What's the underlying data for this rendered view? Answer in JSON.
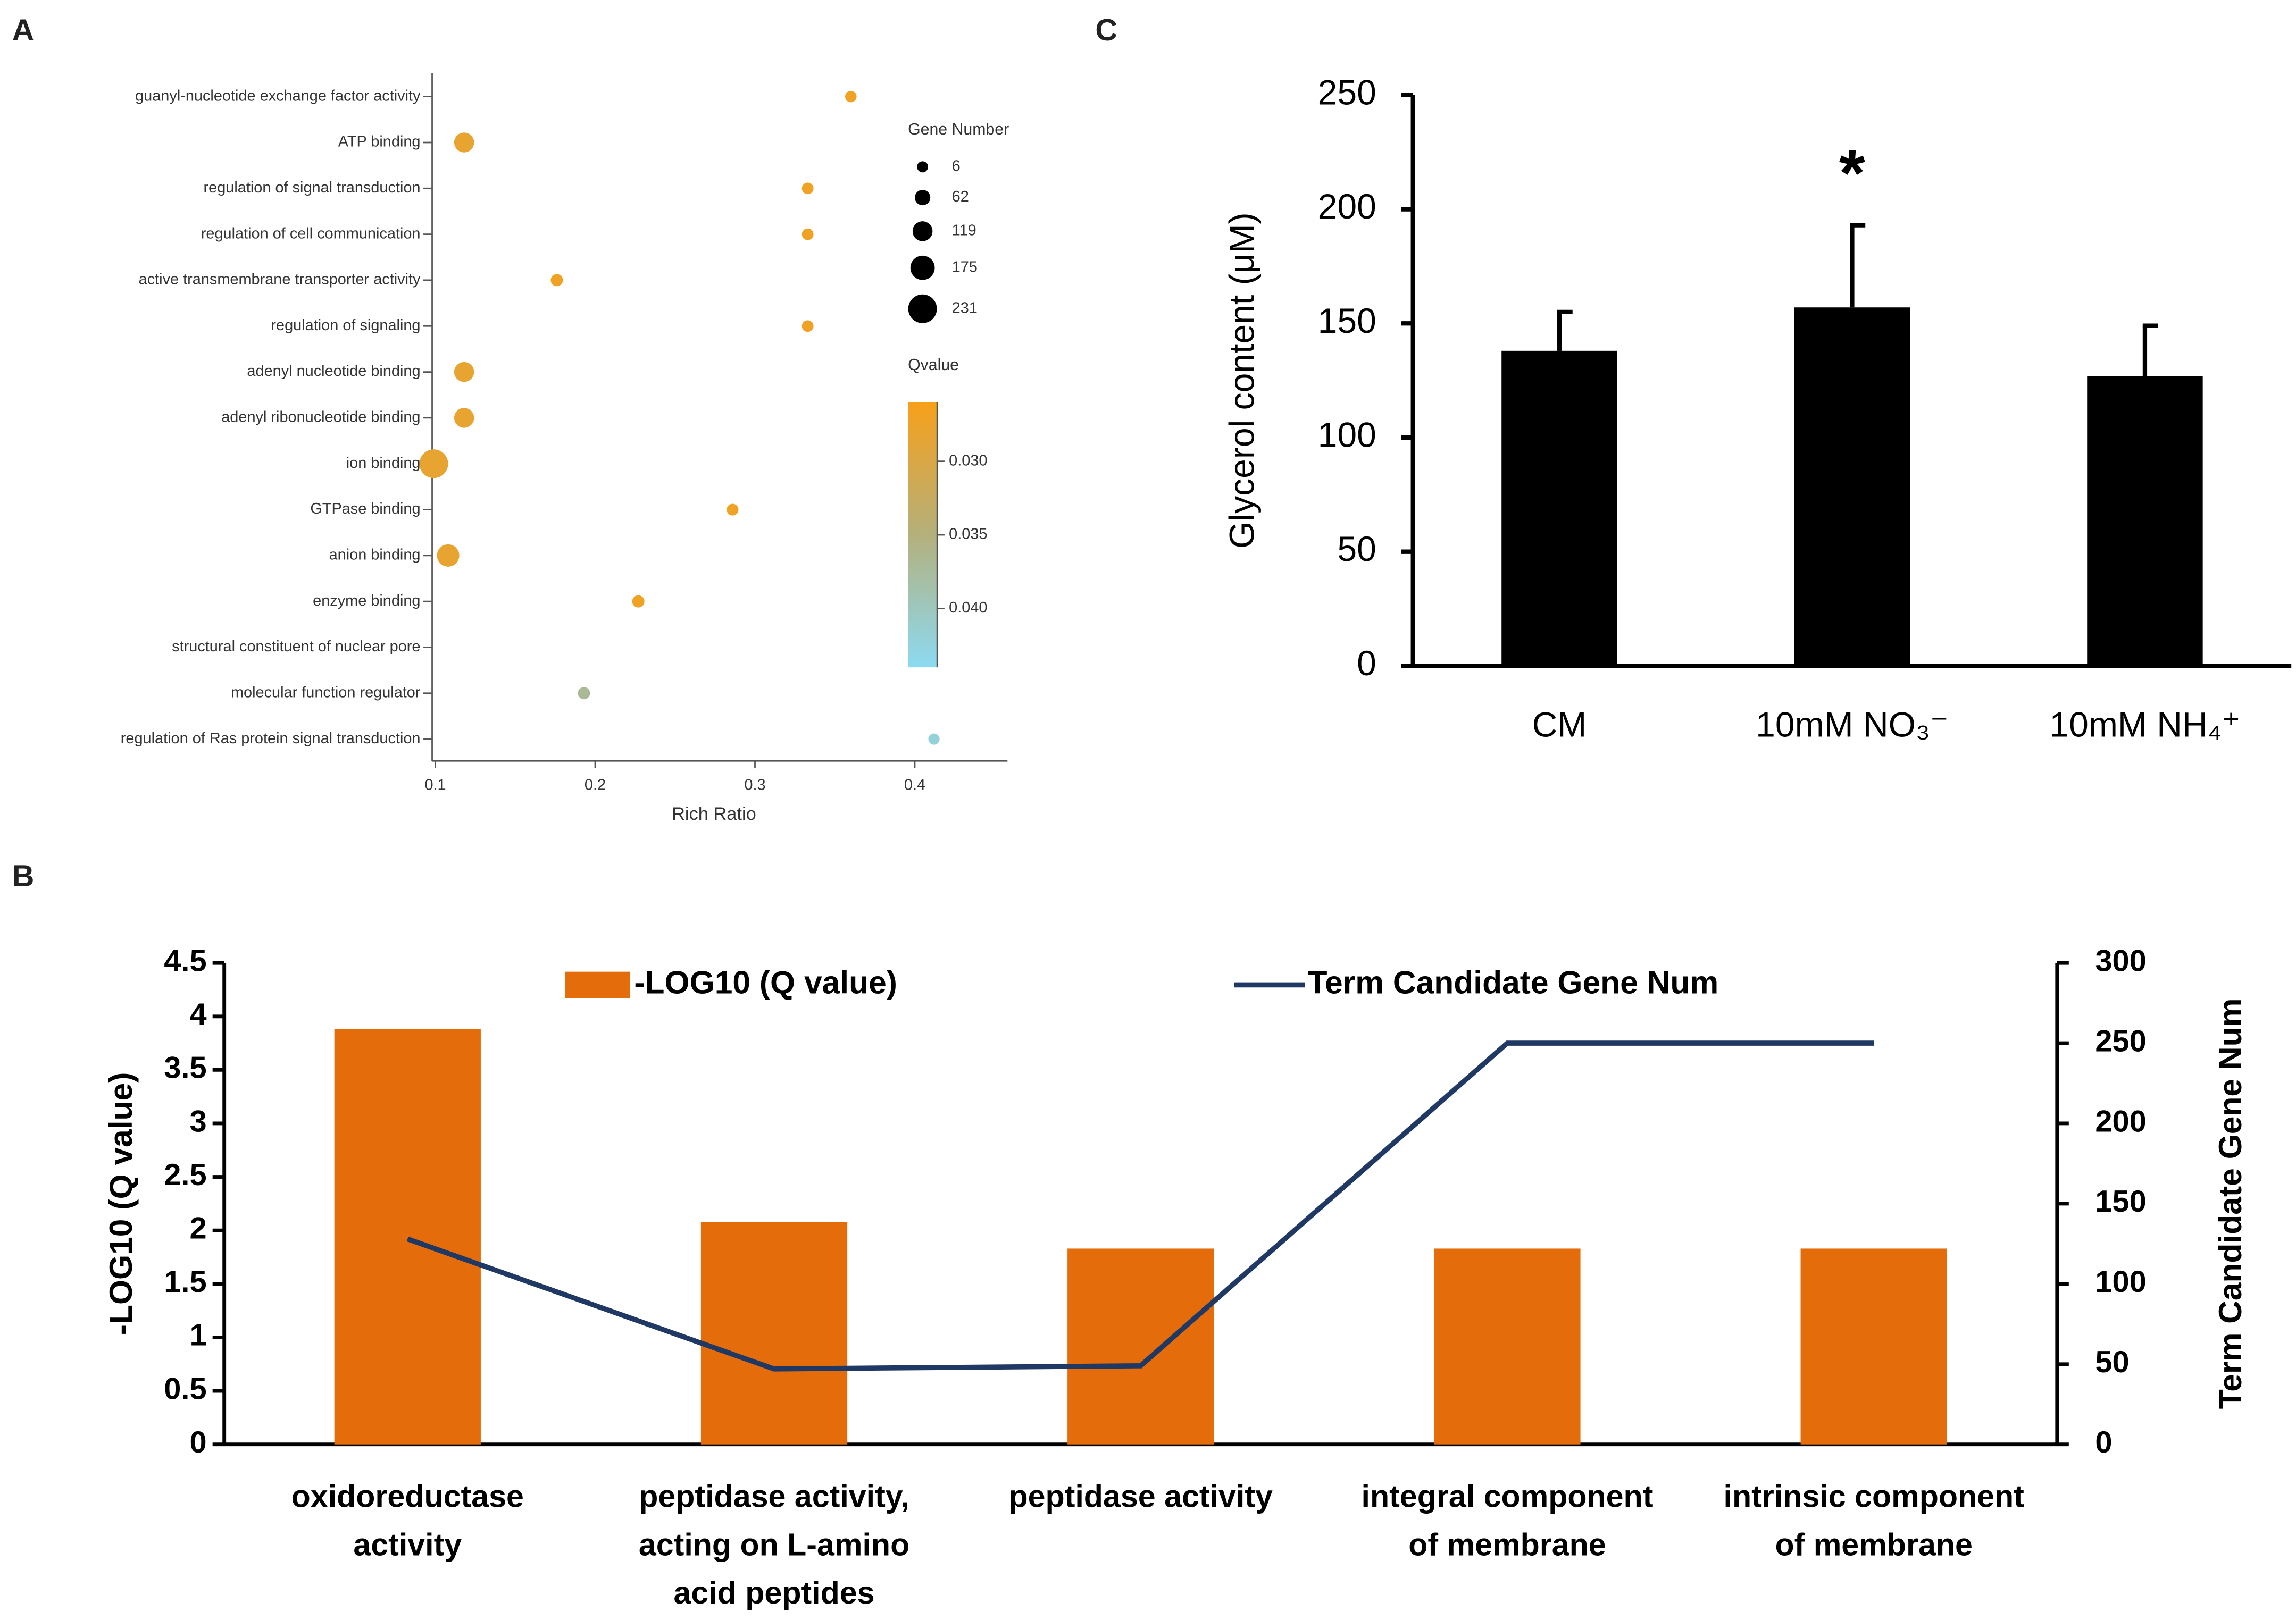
{
  "chart_data": [
    {
      "type": "scatter",
      "panel": "A",
      "categories": [
        "guanyl-nucleotide exchange factor activity",
        "ATP binding",
        "regulation of signal transduction",
        "regulation of cell communication",
        "active transmembrane transporter activity",
        "regulation of signaling",
        "adenyl nucleotide binding",
        "adenyl ribonucleotide binding",
        "ion binding",
        "GTPase binding",
        "anion binding",
        "enzyme binding",
        "structural constituent of nuclear pore",
        "molecular function regulator",
        "regulation of Ras protein signal transduction"
      ],
      "x": [
        0.36,
        0.118,
        0.333,
        0.333,
        0.176,
        0.333,
        0.118,
        0.118,
        0.099,
        0.286,
        0.108,
        0.227,
        null,
        0.193,
        0.412
      ],
      "sizes": [
        10,
        119,
        12,
        12,
        20,
        12,
        119,
        119,
        231,
        14,
        150,
        20,
        null,
        20,
        8
      ],
      "qvalues": [
        0.027,
        0.028,
        0.027,
        0.027,
        0.027,
        0.027,
        0.028,
        0.028,
        0.028,
        0.027,
        0.028,
        0.027,
        null,
        0.037,
        0.042
      ],
      "xlim": [
        0.098,
        0.458
      ],
      "xticks": [
        0.1,
        0.2,
        0.3,
        0.4
      ],
      "xlabel": "Rich Ratio",
      "size_title": "Gene Number",
      "size_legend": [
        6,
        62,
        119,
        175,
        231
      ],
      "color_title": "Qvalue",
      "qlim": [
        0.026,
        0.044
      ],
      "qticks": [
        {
          "value": 0.03,
          "label": "0.030"
        },
        {
          "value": 0.035,
          "label": "0.035"
        },
        {
          "value": 0.04,
          "label": "0.040"
        }
      ],
      "colorscale": [
        "#f7a01a",
        "#b4b07c",
        "#8cdaf2"
      ]
    },
    {
      "type": "bar",
      "panel": "B",
      "categories": [
        "oxidoreductase activity",
        "peptidase activity, acting on L-amino acid peptides",
        "peptidase activity",
        "integral component of membrane",
        "intrinsic component of membrane"
      ],
      "series": [
        {
          "name": "-LOG10 (Q value)",
          "color": "#e46c0a",
          "values": [
            3.88,
            2.08,
            1.83,
            1.83,
            1.83
          ]
        },
        {
          "name": "Term Candidate Gene Num",
          "color": "#1f3864",
          "values": [
            128,
            47,
            49,
            250,
            250
          ],
          "axis": "y2"
        }
      ],
      "ylim": [
        0,
        4.5
      ],
      "yticks": [
        0,
        0.5,
        1,
        1.5,
        2,
        2.5,
        3,
        3.5,
        4,
        4.5
      ],
      "ylabel": "-LOG10 (Q value)",
      "y2lim": [
        0,
        300
      ],
      "y2ticks": [
        0,
        50,
        100,
        150,
        200,
        250,
        300
      ],
      "y2label": "Term Candidate Gene Num"
    },
    {
      "type": "bar",
      "panel": "C",
      "categories": [
        "CM",
        "10mM NO₃⁻",
        "10mM NH₄⁺"
      ],
      "values": [
        138,
        157,
        127
      ],
      "errors": [
        17,
        36,
        22
      ],
      "color": "#000000",
      "ylim": [
        0,
        250
      ],
      "yticks": [
        0,
        50,
        100,
        150,
        200,
        250
      ],
      "ylabel": "Glycerol content  (μM)",
      "annotations": [
        {
          "text": "*",
          "category": 1
        }
      ]
    }
  ]
}
